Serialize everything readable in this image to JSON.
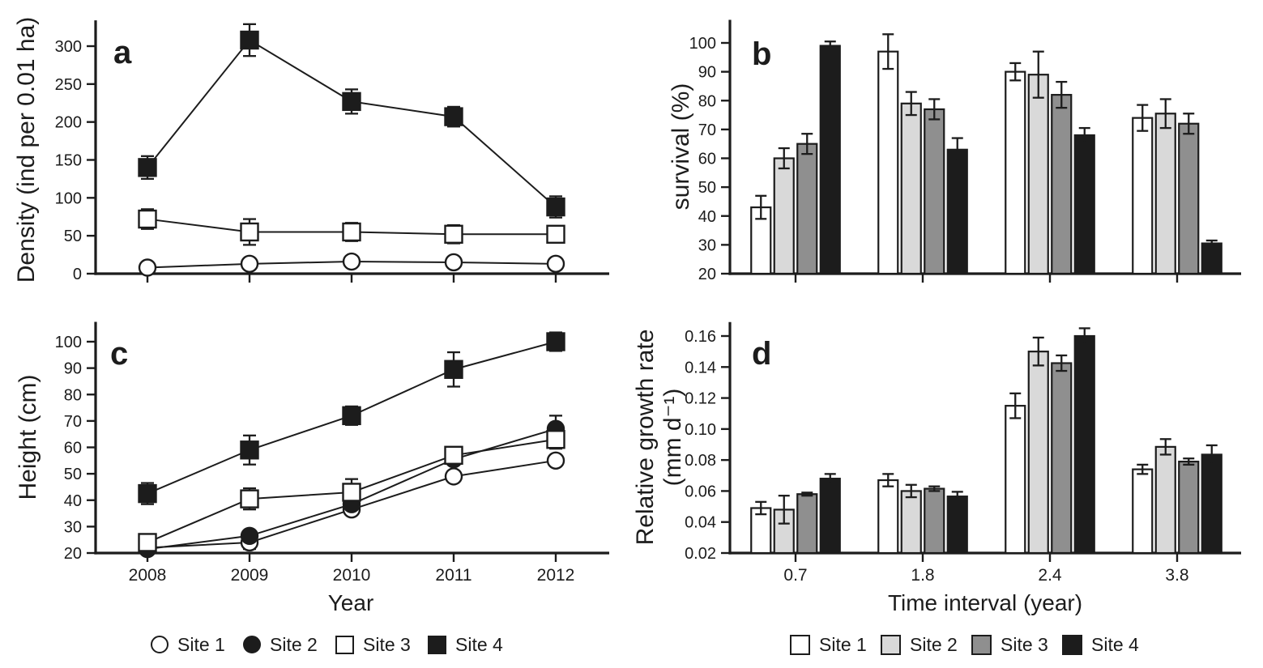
{
  "figure": {
    "panels": {
      "a": {
        "letter": "a",
        "ylabel": "Density (ind per 0.01 ha)"
      },
      "b": {
        "letter": "b",
        "ylabel": "survival (%)"
      },
      "c": {
        "letter": "c",
        "ylabel": "Height (cm)",
        "xlabel": "Year"
      },
      "d": {
        "letter": "d",
        "ylabel_line1": "Relative growth rate",
        "ylabel_line2": "(mm d⁻¹)",
        "xlabel": "Time interval (year)"
      }
    }
  },
  "chart_data": [
    {
      "id": "a",
      "type": "line",
      "title": "a",
      "ylabel": "Density (ind per 0.01 ha)",
      "xlabel": "",
      "x": [
        2008,
        2009,
        2010,
        2011,
        2012
      ],
      "x_tick_labels_visible": false,
      "ylim": [
        0,
        334
      ],
      "yticks": [
        0,
        50,
        100,
        150,
        200,
        250,
        300
      ],
      "grid": false,
      "series": [
        {
          "name": "Site 1",
          "marker": "circle-open",
          "values": [
            8,
            13,
            16,
            15,
            13
          ],
          "errors": [
            0,
            0,
            0,
            0,
            0
          ]
        },
        {
          "name": "Site 3",
          "marker": "square-open",
          "values": [
            72,
            55,
            55,
            52,
            52
          ],
          "errors": [
            13,
            17,
            12,
            12,
            10
          ]
        },
        {
          "name": "Site 4",
          "marker": "square-filled",
          "values": [
            140,
            308,
            227,
            207,
            88
          ],
          "errors": [
            15,
            21,
            16,
            13,
            14
          ]
        }
      ]
    },
    {
      "id": "b",
      "type": "bar",
      "title": "b",
      "ylabel": "survival (%)",
      "xlabel": "",
      "categories": [
        0.7,
        1.8,
        2.4,
        3.8
      ],
      "x_tick_labels_visible": false,
      "ylim": [
        20,
        108
      ],
      "yticks": [
        20,
        30,
        40,
        50,
        60,
        70,
        80,
        90,
        100
      ],
      "grid": false,
      "series": [
        {
          "name": "Site 1",
          "fill": "#ffffff",
          "values": [
            43,
            97,
            90,
            74
          ],
          "errors": [
            4,
            6,
            3,
            4.5
          ]
        },
        {
          "name": "Site 2",
          "fill": "#d9d9d9",
          "values": [
            60,
            79,
            89,
            75.5
          ],
          "errors": [
            3.5,
            4,
            8,
            5
          ]
        },
        {
          "name": "Site 3",
          "fill": "#8f8f8f",
          "values": [
            65,
            77,
            82,
            72
          ],
          "errors": [
            3.5,
            3.5,
            4.5,
            3.5
          ]
        },
        {
          "name": "Site 4",
          "fill": "#1c1c1c",
          "values": [
            99,
            63,
            68,
            30.5
          ],
          "errors": [
            1.5,
            4,
            2.5,
            1
          ]
        }
      ]
    },
    {
      "id": "c",
      "type": "line",
      "title": "c",
      "ylabel": "Height (cm)",
      "xlabel": "Year",
      "x": [
        2008,
        2009,
        2010,
        2011,
        2012
      ],
      "x_tick_labels_visible": true,
      "ylim": [
        20,
        107.5
      ],
      "yticks": [
        20,
        30,
        40,
        50,
        60,
        70,
        80,
        90,
        100
      ],
      "grid": false,
      "series": [
        {
          "name": "Site 1",
          "marker": "circle-open",
          "values": [
            22,
            24,
            36.5,
            49,
            55
          ],
          "errors": [
            1.5,
            2.5,
            1.5,
            1.5,
            2
          ]
        },
        {
          "name": "Site 2",
          "marker": "circle-filled",
          "values": [
            21.5,
            26.5,
            38.5,
            55.5,
            67
          ],
          "errors": [
            1.5,
            2,
            2,
            2,
            5
          ]
        },
        {
          "name": "Site 3",
          "marker": "square-open",
          "values": [
            24,
            40.5,
            43,
            57,
            63
          ],
          "errors": [
            1.5,
            4,
            5,
            3,
            3.5
          ]
        },
        {
          "name": "Site 4",
          "marker": "square-filled",
          "values": [
            42.5,
            59,
            72,
            89.5,
            100
          ],
          "errors": [
            4,
            5.5,
            3.5,
            6.5,
            3.5
          ]
        }
      ]
    },
    {
      "id": "d",
      "type": "bar",
      "title": "d",
      "ylabel": "Relative growth rate (mm d⁻¹)",
      "xlabel": "Time interval (year)",
      "categories": [
        0.7,
        1.8,
        2.4,
        3.8
      ],
      "x_tick_labels_visible": true,
      "ylim": [
        0.02,
        0.169
      ],
      "yticks": [
        0.02,
        0.04,
        0.06,
        0.08,
        0.1,
        0.12,
        0.14,
        0.16
      ],
      "grid": false,
      "series": [
        {
          "name": "Site 1",
          "fill": "#ffffff",
          "values": [
            0.049,
            0.067,
            0.115,
            0.074
          ],
          "errors": [
            0.004,
            0.004,
            0.008,
            0.003
          ]
        },
        {
          "name": "Site 2",
          "fill": "#d9d9d9",
          "values": [
            0.048,
            0.06,
            0.15,
            0.0885
          ],
          "errors": [
            0.009,
            0.004,
            0.009,
            0.005
          ]
        },
        {
          "name": "Site 3",
          "fill": "#8f8f8f",
          "values": [
            0.058,
            0.0615,
            0.1425,
            0.079
          ],
          "errors": [
            0.001,
            0.0015,
            0.005,
            0.002
          ]
        },
        {
          "name": "Site 4",
          "fill": "#1c1c1c",
          "values": [
            0.068,
            0.0565,
            0.16,
            0.0835
          ],
          "errors": [
            0.003,
            0.003,
            0.005,
            0.006
          ]
        }
      ]
    }
  ],
  "legend_markers": {
    "items": [
      {
        "label": "Site 1",
        "marker": "circle-open"
      },
      {
        "label": "Site 2",
        "marker": "circle-filled"
      },
      {
        "label": "Site 3",
        "marker": "square-open"
      },
      {
        "label": "Site 4",
        "marker": "square-filled"
      }
    ]
  },
  "legend_bars": {
    "items": [
      {
        "label": "Site 1",
        "fill": "#ffffff"
      },
      {
        "label": "Site 2",
        "fill": "#d9d9d9"
      },
      {
        "label": "Site 3",
        "fill": "#8f8f8f"
      },
      {
        "label": "Site 4",
        "fill": "#1c1c1c"
      }
    ]
  },
  "colors": {
    "ink": "#1c1c1c",
    "bar_light": "#d9d9d9",
    "bar_mid": "#8f8f8f",
    "bar_dark": "#1c1c1c",
    "bar_white": "#ffffff"
  }
}
